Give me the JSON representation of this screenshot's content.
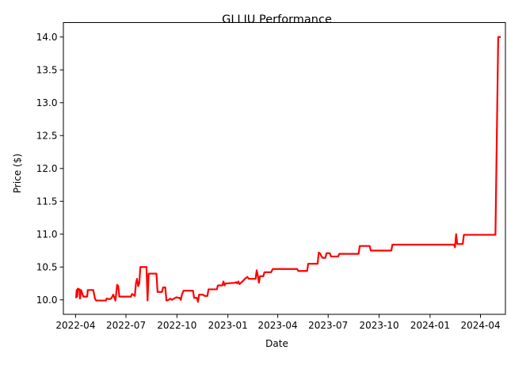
{
  "chart_data": {
    "type": "line",
    "title": "GLLIU Performance",
    "xlabel": "Date",
    "ylabel": "Price ($)",
    "grid": false,
    "legend": "none",
    "x_ticks": [
      "2022-04",
      "2022-07",
      "2022-10",
      "2023-01",
      "2023-04",
      "2023-07",
      "2023-10",
      "2024-01",
      "2024-04"
    ],
    "y_ticks": [
      "10.0",
      "10.5",
      "11.0",
      "11.5",
      "12.0",
      "12.5",
      "13.0",
      "13.5",
      "14.0"
    ],
    "xlim": [
      "2022-03-10",
      "2024-05-16"
    ],
    "ylim": [
      9.78,
      14.22
    ],
    "series": [
      {
        "color": "#ff0000",
        "points": [
          [
            "2022-04-02",
            10.04
          ],
          [
            "2022-04-03",
            10.15
          ],
          [
            "2022-04-04",
            10.05
          ],
          [
            "2022-04-05",
            10.17
          ],
          [
            "2022-04-08",
            10.16
          ],
          [
            "2022-04-09",
            10.02
          ],
          [
            "2022-04-11",
            10.15
          ],
          [
            "2022-04-13",
            10.1
          ],
          [
            "2022-04-15",
            10.05
          ],
          [
            "2022-04-22",
            10.05
          ],
          [
            "2022-04-23",
            10.15
          ],
          [
            "2022-05-03",
            10.15
          ],
          [
            "2022-05-06",
            10.02
          ],
          [
            "2022-05-08",
            9.99
          ],
          [
            "2022-05-26",
            9.99
          ],
          [
            "2022-05-27",
            10.02
          ],
          [
            "2022-06-02",
            10.01
          ],
          [
            "2022-06-05",
            10.03
          ],
          [
            "2022-06-08",
            10.08
          ],
          [
            "2022-06-12",
            9.99
          ],
          [
            "2022-06-15",
            10.23
          ],
          [
            "2022-06-17",
            10.21
          ],
          [
            "2022-06-19",
            10.05
          ],
          [
            "2022-07-10",
            10.05
          ],
          [
            "2022-07-12",
            10.09
          ],
          [
            "2022-07-17",
            10.06
          ],
          [
            "2022-07-19",
            10.25
          ],
          [
            "2022-07-21",
            10.32
          ],
          [
            "2022-07-23",
            10.21
          ],
          [
            "2022-07-25",
            10.25
          ],
          [
            "2022-07-27",
            10.5
          ],
          [
            "2022-08-07",
            10.5
          ],
          [
            "2022-08-09",
            9.99
          ],
          [
            "2022-08-11",
            10.4
          ],
          [
            "2022-08-25",
            10.4
          ],
          [
            "2022-08-27",
            10.12
          ],
          [
            "2022-09-04",
            10.12
          ],
          [
            "2022-09-06",
            10.19
          ],
          [
            "2022-09-10",
            10.19
          ],
          [
            "2022-09-12",
            9.99
          ],
          [
            "2022-09-16",
            10.0
          ],
          [
            "2022-09-19",
            10.02
          ],
          [
            "2022-09-22",
            10.0
          ],
          [
            "2022-09-26",
            10.02
          ],
          [
            "2022-09-30",
            10.04
          ],
          [
            "2022-10-04",
            10.03
          ],
          [
            "2022-10-06",
            10.03
          ],
          [
            "2022-10-08",
            10.0
          ],
          [
            "2022-10-10",
            10.08
          ],
          [
            "2022-10-13",
            10.14
          ],
          [
            "2022-10-30",
            10.14
          ],
          [
            "2022-11-01",
            10.03
          ],
          [
            "2022-11-06",
            10.03
          ],
          [
            "2022-11-08",
            9.97
          ],
          [
            "2022-11-10",
            10.08
          ],
          [
            "2022-11-17",
            10.08
          ],
          [
            "2022-11-20",
            10.06
          ],
          [
            "2022-11-25",
            10.06
          ],
          [
            "2022-11-27",
            10.16
          ],
          [
            "2022-12-12",
            10.16
          ],
          [
            "2022-12-14",
            10.22
          ],
          [
            "2022-12-22",
            10.22
          ],
          [
            "2022-12-24",
            10.28
          ],
          [
            "2022-12-26",
            10.22
          ],
          [
            "2022-12-28",
            10.25
          ],
          [
            "2023-01-14",
            10.26
          ],
          [
            "2023-01-16",
            10.27
          ],
          [
            "2023-01-18",
            10.25
          ],
          [
            "2023-01-20",
            10.28
          ],
          [
            "2023-01-22",
            10.24
          ],
          [
            "2023-01-26",
            10.27
          ],
          [
            "2023-02-02",
            10.33
          ],
          [
            "2023-02-05",
            10.35
          ],
          [
            "2023-02-08",
            10.32
          ],
          [
            "2023-02-20",
            10.32
          ],
          [
            "2023-02-22",
            10.45
          ],
          [
            "2023-02-24",
            10.37
          ],
          [
            "2023-02-26",
            10.26
          ],
          [
            "2023-02-28",
            10.36
          ],
          [
            "2023-03-06",
            10.36
          ],
          [
            "2023-03-08",
            10.42
          ],
          [
            "2023-03-20",
            10.42
          ],
          [
            "2023-03-23",
            10.47
          ],
          [
            "2023-05-06",
            10.47
          ],
          [
            "2023-05-08",
            10.44
          ],
          [
            "2023-05-24",
            10.44
          ],
          [
            "2023-05-26",
            10.55
          ],
          [
            "2023-06-12",
            10.55
          ],
          [
            "2023-06-14",
            10.72
          ],
          [
            "2023-06-17",
            10.7
          ],
          [
            "2023-06-19",
            10.66
          ],
          [
            "2023-06-21",
            10.64
          ],
          [
            "2023-06-26",
            10.64
          ],
          [
            "2023-06-28",
            10.71
          ],
          [
            "2023-07-04",
            10.71
          ],
          [
            "2023-07-06",
            10.66
          ],
          [
            "2023-07-19",
            10.66
          ],
          [
            "2023-07-21",
            10.7
          ],
          [
            "2023-08-25",
            10.7
          ],
          [
            "2023-08-27",
            10.82
          ],
          [
            "2023-09-14",
            10.82
          ],
          [
            "2023-09-16",
            10.75
          ],
          [
            "2023-10-23",
            10.75
          ],
          [
            "2023-10-25",
            10.84
          ],
          [
            "2024-02-13",
            10.84
          ],
          [
            "2024-02-15",
            10.8
          ],
          [
            "2024-02-17",
            11.0
          ],
          [
            "2024-02-19",
            10.85
          ],
          [
            "2024-02-29",
            10.85
          ],
          [
            "2024-03-02",
            10.99
          ],
          [
            "2024-04-28",
            10.99
          ],
          [
            "2024-05-03",
            14.0
          ],
          [
            "2024-05-06",
            14.0
          ]
        ]
      }
    ]
  }
}
